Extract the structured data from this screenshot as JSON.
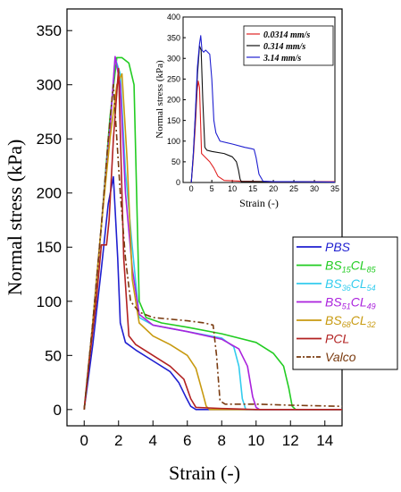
{
  "chart_data": [
    {
      "type": "line",
      "title": "",
      "xlabel": "Strain (-)",
      "ylabel": "Normal stress (kPa)",
      "xlim": [
        -1,
        15
      ],
      "ylim": [
        -15,
        370
      ],
      "xticks": [
        0,
        2,
        4,
        6,
        8,
        10,
        12,
        14
      ],
      "yticks": [
        0,
        50,
        100,
        150,
        200,
        250,
        300,
        350
      ],
      "legend_position": "right-middle",
      "series": [
        {
          "name": "PBS",
          "name_base": "PBS",
          "name_sub1": "",
          "name_mid": "",
          "name_sub2": "",
          "color": "#1f1fd0",
          "dash": "",
          "x": [
            0,
            0.5,
            1.0,
            1.4,
            1.7,
            1.95,
            2.1,
            2.4,
            3.0,
            4.0,
            5.0,
            5.5,
            5.9,
            6.2,
            6.5,
            8.0,
            10.0,
            12.0,
            15.0
          ],
          "y": [
            0,
            60,
            130,
            190,
            215,
            140,
            80,
            62,
            55,
            45,
            35,
            25,
            12,
            3,
            0,
            0,
            0,
            0,
            0
          ]
        },
        {
          "name": "BS15CL85",
          "name_base": "BS",
          "name_sub1": "15",
          "name_mid": "CL",
          "name_sub2": "85",
          "color": "#22cc22",
          "dash": "",
          "x": [
            0,
            0.5,
            1.0,
            1.5,
            1.9,
            2.2,
            2.6,
            2.9,
            3.2,
            3.6,
            4.5,
            6.0,
            8.0,
            10.0,
            11.0,
            11.6,
            11.9,
            12.1,
            12.3,
            15.0
          ],
          "y": [
            0,
            80,
            170,
            270,
            325,
            325,
            320,
            300,
            100,
            85,
            80,
            76,
            70,
            62,
            52,
            40,
            20,
            3,
            0,
            0
          ]
        },
        {
          "name": "BS36CL54",
          "name_base": "BS",
          "name_sub1": "36",
          "name_mid": "CL",
          "name_sub2": "54",
          "color": "#33ccee",
          "dash": "",
          "x": [
            0,
            0.5,
            1.0,
            1.5,
            1.8,
            2.1,
            2.4,
            2.8,
            3.2,
            4.0,
            6.0,
            8.0,
            8.7,
            9.0,
            9.2,
            9.4,
            15.0
          ],
          "y": [
            0,
            80,
            170,
            260,
            325,
            310,
            220,
            150,
            85,
            78,
            72,
            66,
            58,
            40,
            10,
            0,
            0
          ]
        },
        {
          "name": "BS51CL49",
          "name_base": "BS",
          "name_sub1": "51",
          "name_mid": "CL",
          "name_sub2": "49",
          "color": "#aa22dd",
          "dash": "",
          "x": [
            0,
            0.5,
            1.0,
            1.5,
            1.8,
            2.1,
            2.4,
            2.8,
            3.2,
            4.0,
            6.0,
            8.0,
            9.0,
            9.5,
            9.8,
            10.0,
            10.2,
            15.0
          ],
          "y": [
            0,
            80,
            170,
            260,
            326,
            300,
            200,
            130,
            88,
            78,
            72,
            65,
            56,
            40,
            12,
            2,
            0,
            0
          ]
        },
        {
          "name": "BS68CL32",
          "name_base": "BS",
          "name_sub1": "68",
          "name_mid": "CL",
          "name_sub2": "32",
          "color": "#c89a10",
          "dash": "",
          "x": [
            0,
            0.5,
            1.0,
            1.5,
            1.9,
            2.2,
            2.5,
            2.8,
            3.2,
            4.0,
            5.0,
            6.0,
            6.5,
            6.9,
            7.1,
            7.3,
            15.0
          ],
          "y": [
            0,
            80,
            170,
            250,
            300,
            310,
            230,
            120,
            80,
            68,
            60,
            50,
            38,
            15,
            3,
            0,
            0
          ]
        },
        {
          "name": "PCL",
          "name_base": "PCL",
          "name_sub1": "",
          "name_mid": "",
          "name_sub2": "",
          "color": "#b22222",
          "dash": "",
          "x": [
            0,
            0.3,
            0.7,
            1.0,
            1.3,
            1.45,
            1.7,
            2.0,
            2.3,
            2.6,
            3.0,
            4.0,
            5.0,
            5.8,
            6.2,
            6.5,
            8.0,
            10.0,
            12.0,
            15.0
          ],
          "y": [
            0,
            45,
            100,
            152,
            152,
            175,
            250,
            315,
            140,
            68,
            60,
            50,
            40,
            28,
            10,
            2,
            1,
            0,
            0,
            0
          ]
        },
        {
          "name": "Valco",
          "name_base": "Valco",
          "name_sub1": "",
          "name_mid": "",
          "name_sub2": "",
          "color": "#7a3b10",
          "dash": "7,3,2,3",
          "x": [
            0,
            0.5,
            1.0,
            1.4,
            1.7,
            1.9,
            2.1,
            2.4,
            2.7,
            3.2,
            4.0,
            6.0,
            7.0,
            7.5,
            7.7,
            7.9,
            8.2,
            10.0,
            12.0,
            15.0
          ],
          "y": [
            0,
            80,
            170,
            250,
            300,
            250,
            200,
            140,
            100,
            90,
            85,
            82,
            80,
            78,
            50,
            8,
            5,
            5,
            4,
            3
          ]
        }
      ]
    },
    {
      "type": "line",
      "title": "",
      "xlabel": "Strain (-)",
      "ylabel": "Normal stress (kPa)",
      "xlim": [
        -2,
        35
      ],
      "ylim": [
        0,
        400
      ],
      "xticks": [
        0,
        5,
        10,
        15,
        20,
        25,
        30,
        35
      ],
      "yticks": [
        0,
        50,
        100,
        150,
        200,
        250,
        300,
        350,
        400
      ],
      "legend_position": "top-right",
      "series": [
        {
          "name": "0.0314 mm/s",
          "color": "#e02020",
          "dash": "",
          "x": [
            0,
            0.5,
            1.0,
            1.4,
            1.7,
            2.0,
            2.5,
            3.5,
            4.5,
            5.5,
            6.5,
            8.0,
            12.0,
            20.0,
            35.0
          ],
          "y": [
            0,
            60,
            140,
            220,
            245,
            230,
            70,
            60,
            50,
            35,
            15,
            5,
            3,
            2,
            2
          ]
        },
        {
          "name": "0.314 mm/s",
          "color": "#111111",
          "dash": "",
          "x": [
            0,
            0.5,
            1.0,
            1.5,
            2.0,
            2.4,
            2.8,
            3.3,
            3.8,
            5.0,
            8.0,
            10.0,
            11.0,
            11.5,
            11.9,
            12.2,
            15.0,
            20.0,
            35.0
          ],
          "y": [
            0,
            70,
            160,
            260,
            330,
            320,
            200,
            85,
            78,
            75,
            70,
            62,
            50,
            30,
            8,
            2,
            2,
            2,
            1
          ]
        },
        {
          "name": "3.14 mm/s",
          "color": "#1f1fd0",
          "dash": "",
          "x": [
            0,
            0.5,
            1.0,
            1.5,
            2.0,
            2.3,
            2.6,
            3.0,
            3.5,
            4.5,
            5.0,
            5.5,
            6.0,
            7.0,
            10.0,
            13.0,
            14.5,
            15.3,
            15.8,
            16.5,
            17.5,
            20.0,
            25.0,
            35.0
          ],
          "y": [
            0,
            70,
            170,
            280,
            335,
            355,
            320,
            315,
            320,
            310,
            250,
            150,
            120,
            100,
            93,
            85,
            82,
            80,
            60,
            20,
            3,
            2,
            2,
            1
          ]
        }
      ]
    }
  ]
}
